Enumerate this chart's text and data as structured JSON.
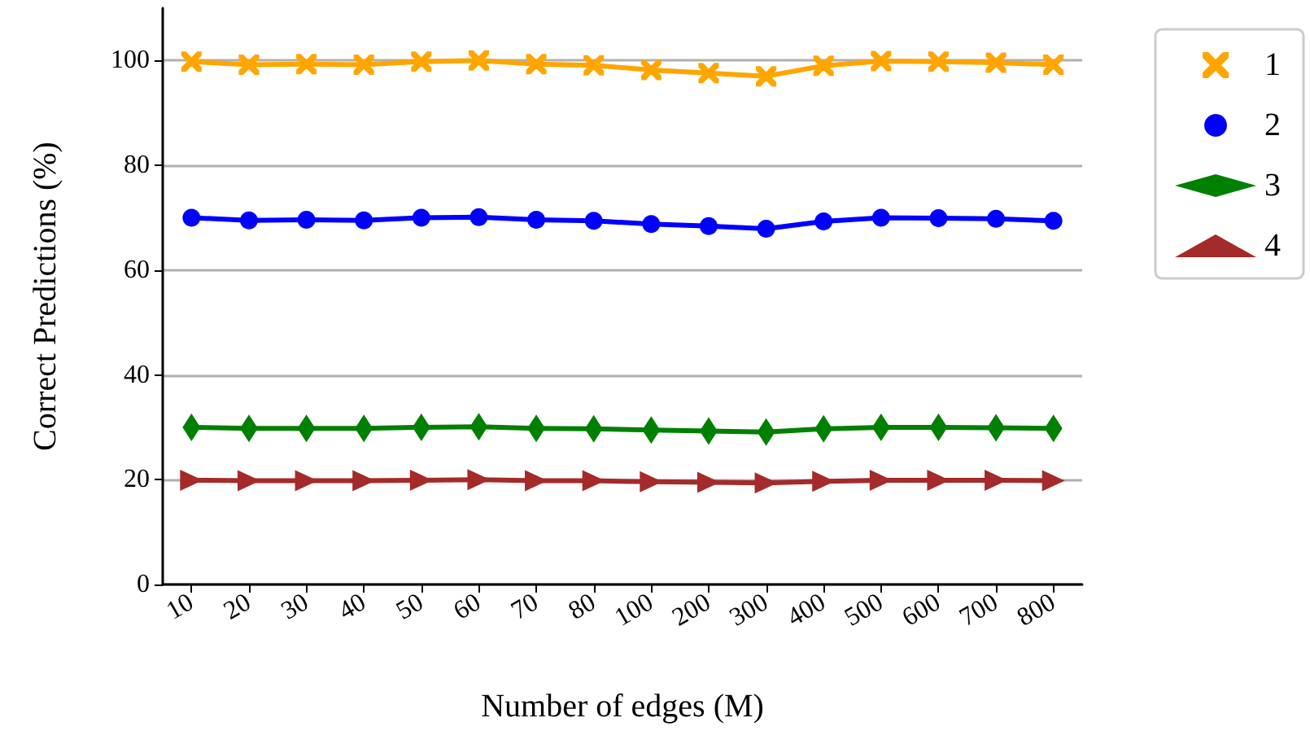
{
  "chart_data": {
    "type": "line",
    "xlabel": "Number of edges (M)",
    "ylabel": "Correct Predictions (%)",
    "categories": [
      "10",
      "20",
      "30",
      "40",
      "50",
      "60",
      "70",
      "80",
      "100",
      "200",
      "300",
      "400",
      "500",
      "600",
      "700",
      "800"
    ],
    "series": [
      {
        "name": "1",
        "color": "#ffa500",
        "marker": "cross",
        "values": [
          99.8,
          99.2,
          99.3,
          99.2,
          99.8,
          100,
          99.3,
          99.1,
          98.2,
          97.6,
          97,
          99,
          99.9,
          99.8,
          99.6,
          99.2
        ]
      },
      {
        "name": "2",
        "color": "#0000ff",
        "marker": "circle",
        "values": [
          70,
          69.5,
          69.6,
          69.5,
          70,
          70.1,
          69.6,
          69.4,
          68.8,
          68.4,
          67.9,
          69.3,
          70,
          69.9,
          69.8,
          69.4
        ]
      },
      {
        "name": "3",
        "color": "#008000",
        "marker": "diamond",
        "values": [
          30,
          29.8,
          29.8,
          29.8,
          30,
          30.1,
          29.8,
          29.7,
          29.5,
          29.3,
          29.1,
          29.7,
          30,
          30,
          29.9,
          29.8
        ]
      },
      {
        "name": "4",
        "color": "#a52a2a",
        "marker": "triangle",
        "values": [
          19.9,
          19.8,
          19.8,
          19.8,
          19.9,
          20,
          19.8,
          19.8,
          19.6,
          19.5,
          19.4,
          19.7,
          19.9,
          19.9,
          19.9,
          19.8
        ]
      }
    ],
    "ylim": [
      0,
      110
    ],
    "yticks": [
      0,
      20,
      40,
      60,
      80,
      100
    ],
    "grid": "y",
    "legend": "top right",
    "line_style": "solid"
  }
}
